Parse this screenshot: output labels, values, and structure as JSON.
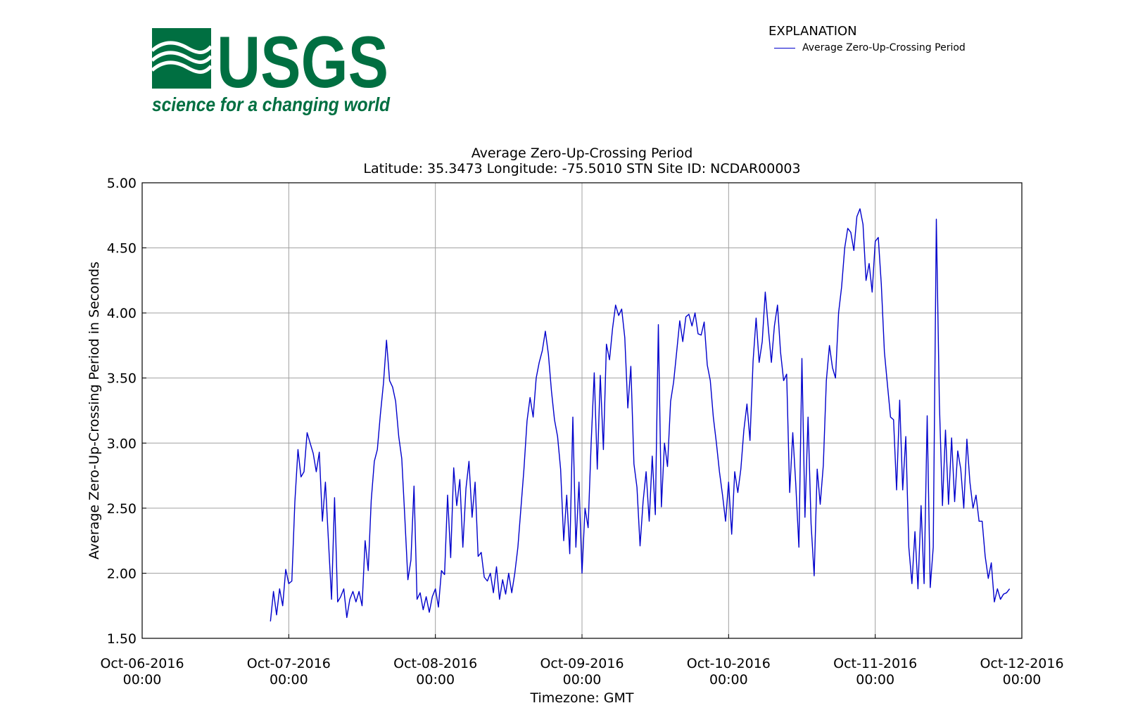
{
  "logo": {
    "wordmark": "USGS",
    "tagline": "science for a changing world",
    "color": "#006f41"
  },
  "legend": {
    "title": "EXPLANATION",
    "entries": [
      {
        "label": "Average Zero-Up-Crossing Period",
        "color": "#0000cc"
      }
    ]
  },
  "chart_data": {
    "type": "line",
    "title": "Average Zero-Up-Crossing Period",
    "subtitle": "Latitude: 35.3473 Longitude: -75.5010 STN Site ID: NCDAR00003",
    "xlabel": "Timezone: GMT",
    "ylabel": "Average Zero-Up-Crossing Period in Seconds",
    "xlim": [
      "2016-10-06 00:00",
      "2016-10-12 00:00"
    ],
    "ylim": [
      1.5,
      5.0
    ],
    "grid": true,
    "legend_position": "top-right",
    "line_color": "#0000cc",
    "x_ticks": [
      {
        "line1": "Oct-06-2016",
        "line2": "00:00"
      },
      {
        "line1": "Oct-07-2016",
        "line2": "00:00"
      },
      {
        "line1": "Oct-08-2016",
        "line2": "00:00"
      },
      {
        "line1": "Oct-09-2016",
        "line2": "00:00"
      },
      {
        "line1": "Oct-10-2016",
        "line2": "00:00"
      },
      {
        "line1": "Oct-11-2016",
        "line2": "00:00"
      },
      {
        "line1": "Oct-12-2016",
        "line2": "00:00"
      }
    ],
    "y_ticks": [
      "1.50",
      "2.00",
      "2.50",
      "3.00",
      "3.50",
      "4.00",
      "4.50",
      "5.00"
    ],
    "series": [
      {
        "x": [
          "2016-10-06 21:00",
          "2016-10-06 21:30",
          "2016-10-06 22:00",
          "2016-10-06 22:30",
          "2016-10-06 23:00",
          "2016-10-06 23:30",
          "2016-10-07 00:00",
          "2016-10-07 00:30",
          "2016-10-07 01:00",
          "2016-10-07 01:30",
          "2016-10-07 02:00",
          "2016-10-07 02:30",
          "2016-10-07 03:00",
          "2016-10-07 03:30",
          "2016-10-07 04:00",
          "2016-10-07 04:30",
          "2016-10-07 05:00",
          "2016-10-07 05:30",
          "2016-10-07 06:00",
          "2016-10-07 06:30",
          "2016-10-07 07:00",
          "2016-10-07 07:30",
          "2016-10-07 08:00",
          "2016-10-07 08:30",
          "2016-10-07 09:00",
          "2016-10-07 09:30",
          "2016-10-07 10:00",
          "2016-10-07 10:30",
          "2016-10-07 11:00",
          "2016-10-07 11:30",
          "2016-10-07 12:00",
          "2016-10-07 12:30",
          "2016-10-07 13:00",
          "2016-10-07 13:30",
          "2016-10-07 14:00",
          "2016-10-07 14:30",
          "2016-10-07 15:00",
          "2016-10-07 15:30",
          "2016-10-07 16:00",
          "2016-10-07 16:30",
          "2016-10-07 17:00",
          "2016-10-07 17:30",
          "2016-10-07 18:00",
          "2016-10-07 18:30",
          "2016-10-07 19:00",
          "2016-10-07 19:30",
          "2016-10-07 20:00",
          "2016-10-07 20:30",
          "2016-10-07 21:00",
          "2016-10-07 21:30",
          "2016-10-07 22:00",
          "2016-10-07 22:30",
          "2016-10-07 23:00",
          "2016-10-07 23:30",
          "2016-10-08 00:00",
          "2016-10-08 00:30",
          "2016-10-08 01:00",
          "2016-10-08 01:30",
          "2016-10-08 02:00",
          "2016-10-08 02:30",
          "2016-10-08 03:00",
          "2016-10-08 03:30",
          "2016-10-08 04:00",
          "2016-10-08 04:30",
          "2016-10-08 05:00",
          "2016-10-08 05:30",
          "2016-10-08 06:00",
          "2016-10-08 06:30",
          "2016-10-08 07:00",
          "2016-10-08 07:30",
          "2016-10-08 08:00",
          "2016-10-08 08:30",
          "2016-10-08 09:00",
          "2016-10-08 09:30",
          "2016-10-08 10:00",
          "2016-10-08 10:30",
          "2016-10-08 11:00",
          "2016-10-08 11:30",
          "2016-10-08 12:00",
          "2016-10-08 12:30",
          "2016-10-08 13:00",
          "2016-10-08 13:30",
          "2016-10-08 14:00",
          "2016-10-08 14:30",
          "2016-10-08 15:00",
          "2016-10-08 15:30",
          "2016-10-08 16:00",
          "2016-10-08 16:30",
          "2016-10-08 17:00",
          "2016-10-08 17:30",
          "2016-10-08 18:00",
          "2016-10-08 18:30",
          "2016-10-08 19:00",
          "2016-10-08 19:30",
          "2016-10-08 20:00",
          "2016-10-08 20:30",
          "2016-10-08 21:00",
          "2016-10-08 21:30",
          "2016-10-08 22:00",
          "2016-10-08 22:30",
          "2016-10-08 23:00",
          "2016-10-08 23:30",
          "2016-10-09 00:00",
          "2016-10-09 00:30",
          "2016-10-09 01:00",
          "2016-10-09 01:30",
          "2016-10-09 02:00",
          "2016-10-09 02:30",
          "2016-10-09 03:00",
          "2016-10-09 03:30",
          "2016-10-09 04:00",
          "2016-10-09 04:30",
          "2016-10-09 05:00",
          "2016-10-09 05:30",
          "2016-10-09 06:00",
          "2016-10-09 06:30",
          "2016-10-09 07:00",
          "2016-10-09 07:30",
          "2016-10-09 08:00",
          "2016-10-09 08:30",
          "2016-10-09 09:00",
          "2016-10-09 09:30",
          "2016-10-09 10:00",
          "2016-10-09 10:30",
          "2016-10-09 11:00",
          "2016-10-09 11:30",
          "2016-10-09 12:00",
          "2016-10-09 12:30",
          "2016-10-09 13:00",
          "2016-10-09 13:30",
          "2016-10-09 14:00",
          "2016-10-09 14:30",
          "2016-10-09 15:00",
          "2016-10-09 15:30",
          "2016-10-09 16:00",
          "2016-10-09 16:30",
          "2016-10-09 17:00",
          "2016-10-09 17:30",
          "2016-10-09 18:00",
          "2016-10-09 18:30",
          "2016-10-09 19:00",
          "2016-10-09 19:30",
          "2016-10-09 20:00",
          "2016-10-09 20:30",
          "2016-10-09 21:00",
          "2016-10-09 21:30",
          "2016-10-09 22:00",
          "2016-10-09 22:30",
          "2016-10-09 23:00",
          "2016-10-09 23:30",
          "2016-10-10 00:00",
          "2016-10-10 00:30",
          "2016-10-10 01:00",
          "2016-10-10 01:30",
          "2016-10-10 02:00",
          "2016-10-10 02:30",
          "2016-10-10 03:00",
          "2016-10-10 03:30",
          "2016-10-10 04:00",
          "2016-10-10 04:30",
          "2016-10-10 05:00",
          "2016-10-10 05:30",
          "2016-10-10 06:00",
          "2016-10-10 06:30",
          "2016-10-10 07:00",
          "2016-10-10 07:30",
          "2016-10-10 08:00",
          "2016-10-10 08:30",
          "2016-10-10 09:00",
          "2016-10-10 09:30",
          "2016-10-10 10:00",
          "2016-10-10 10:30",
          "2016-10-10 11:00",
          "2016-10-10 11:30",
          "2016-10-10 12:00",
          "2016-10-10 12:30",
          "2016-10-10 13:00",
          "2016-10-10 13:30",
          "2016-10-10 14:00",
          "2016-10-10 14:30",
          "2016-10-10 15:00",
          "2016-10-10 15:30",
          "2016-10-10 16:00",
          "2016-10-10 16:30",
          "2016-10-10 17:00",
          "2016-10-10 17:30",
          "2016-10-10 18:00",
          "2016-10-10 18:30",
          "2016-10-10 19:00",
          "2016-10-10 19:30",
          "2016-10-10 20:00",
          "2016-10-10 20:30",
          "2016-10-10 21:00",
          "2016-10-10 21:30",
          "2016-10-10 22:00",
          "2016-10-10 22:30",
          "2016-10-10 23:00",
          "2016-10-10 23:30",
          "2016-10-11 00:00",
          "2016-10-11 00:30",
          "2016-10-11 01:00",
          "2016-10-11 01:30",
          "2016-10-11 02:00",
          "2016-10-11 02:30",
          "2016-10-11 03:00",
          "2016-10-11 03:30",
          "2016-10-11 04:00",
          "2016-10-11 04:30",
          "2016-10-11 05:00",
          "2016-10-11 05:30",
          "2016-10-11 06:00",
          "2016-10-11 06:30",
          "2016-10-11 07:00",
          "2016-10-11 07:30",
          "2016-10-11 08:00",
          "2016-10-11 08:30",
          "2016-10-11 09:00",
          "2016-10-11 09:30",
          "2016-10-11 10:00",
          "2016-10-11 10:30",
          "2016-10-11 11:00",
          "2016-10-11 11:30",
          "2016-10-11 12:00",
          "2016-10-11 12:30",
          "2016-10-11 13:00",
          "2016-10-11 13:30",
          "2016-10-11 14:00",
          "2016-10-11 14:30",
          "2016-10-11 15:00",
          "2016-10-11 15:30",
          "2016-10-11 16:00",
          "2016-10-11 16:30",
          "2016-10-11 17:00",
          "2016-10-11 17:30",
          "2016-10-11 18:00",
          "2016-10-11 18:30",
          "2016-10-11 19:00",
          "2016-10-11 19:30",
          "2016-10-11 20:00",
          "2016-10-11 20:30",
          "2016-10-11 21:00",
          "2016-10-11 21:30",
          "2016-10-11 22:00"
        ],
        "values": [
          1.63,
          1.86,
          1.68,
          1.88,
          1.75,
          2.03,
          1.92,
          1.94,
          2.55,
          2.95,
          2.74,
          2.78,
          3.08,
          3.0,
          2.92,
          2.78,
          2.93,
          2.4,
          2.7,
          2.24,
          1.8,
          2.58,
          1.78,
          1.82,
          1.88,
          1.66,
          1.8,
          1.86,
          1.78,
          1.86,
          1.75,
          2.25,
          2.02,
          2.56,
          2.86,
          2.95,
          3.22,
          3.46,
          3.79,
          3.48,
          3.43,
          3.32,
          3.05,
          2.88,
          2.42,
          1.95,
          2.1,
          2.67,
          1.8,
          1.85,
          1.72,
          1.82,
          1.7,
          1.82,
          1.88,
          1.74,
          2.02,
          1.99,
          2.6,
          2.12,
          2.81,
          2.52,
          2.72,
          2.2,
          2.65,
          2.86,
          2.43,
          2.7,
          2.13,
          2.16,
          1.97,
          1.94,
          2.0,
          1.85,
          2.05,
          1.8,
          1.95,
          1.84,
          2.0,
          1.85,
          2.0,
          2.2,
          2.5,
          2.8,
          3.17,
          3.35,
          3.2,
          3.5,
          3.62,
          3.71,
          3.86,
          3.68,
          3.4,
          3.18,
          3.05,
          2.8,
          2.25,
          2.6,
          2.15,
          3.2,
          2.2,
          2.7,
          2.0,
          2.5,
          2.35,
          3.0,
          3.54,
          2.8,
          3.52,
          2.95,
          3.76,
          3.64,
          3.88,
          4.06,
          3.98,
          4.03,
          3.81,
          3.27,
          3.59,
          2.84,
          2.66,
          2.21,
          2.55,
          2.78,
          2.4,
          2.9,
          2.45,
          3.91,
          2.51,
          3.0,
          2.82,
          3.32,
          3.47,
          3.7,
          3.94,
          3.78,
          3.97,
          3.99,
          3.9,
          4.0,
          3.84,
          3.83,
          3.93,
          3.6,
          3.48,
          3.2,
          3.0,
          2.78,
          2.6,
          2.4,
          2.7,
          2.3,
          2.78,
          2.62,
          2.8,
          3.1,
          3.3,
          3.02,
          3.63,
          3.96,
          3.62,
          3.78,
          4.16,
          3.88,
          3.62,
          3.9,
          4.06,
          3.7,
          3.48,
          3.53,
          2.62,
          3.08,
          2.68,
          2.2,
          3.65,
          2.43,
          3.2,
          2.38,
          1.98,
          2.8,
          2.53,
          2.83,
          3.48,
          3.75,
          3.58,
          3.5,
          4.0,
          4.2,
          4.5,
          4.65,
          4.62,
          4.48,
          4.74,
          4.8,
          4.68,
          4.25,
          4.38,
          4.16,
          4.55,
          4.58,
          4.22,
          3.7,
          3.45,
          3.2,
          3.18,
          2.64,
          3.33,
          2.64,
          3.05,
          2.2,
          1.92,
          2.32,
          1.88,
          2.52,
          1.92,
          3.21,
          1.89,
          2.2,
          4.72,
          3.31,
          2.52,
          3.1,
          2.53,
          3.04,
          2.55,
          2.94,
          2.8,
          2.5,
          3.03,
          2.7,
          2.5,
          2.6,
          2.4,
          2.4,
          2.13,
          1.96,
          2.08,
          1.78,
          1.88,
          1.8,
          1.84,
          1.85,
          1.88
        ]
      }
    ]
  }
}
